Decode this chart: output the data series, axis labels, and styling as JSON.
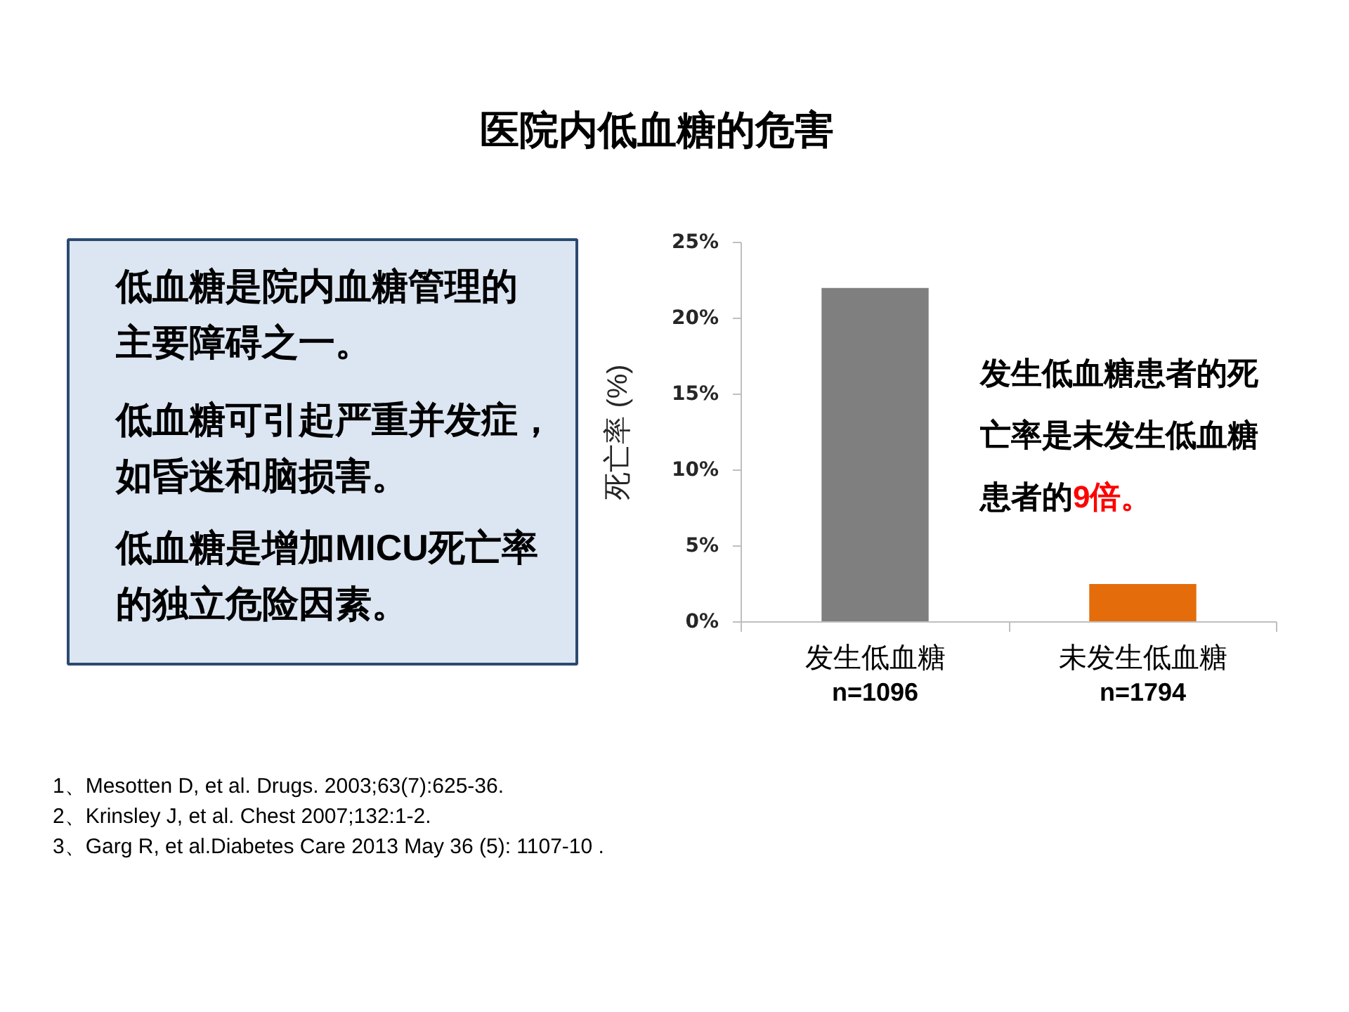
{
  "chart_data": {
    "type": "bar",
    "title": "医院内低血糖的危害",
    "ylabel": "死亡率 (%)",
    "categories": [
      "发生低血糖\nn=1096",
      "未发生低血糖\nn=1794"
    ],
    "values": [
      22,
      2.5
    ],
    "colors": [
      "#7f7f7f",
      "#e46c0a"
    ],
    "ylim": [
      0,
      25
    ],
    "yticks": [
      {
        "value": 0,
        "label": "0%"
      },
      {
        "value": 5,
        "label": "5%"
      },
      {
        "value": 10,
        "label": "10%"
      },
      {
        "value": 15,
        "label": "15%"
      },
      {
        "value": 20,
        "label": "20%"
      },
      {
        "value": 25,
        "label": "25%"
      }
    ],
    "annotations": [
      "低血糖是院内血糖管理的主要障碍之一。",
      "低血糖可引起严重并发症，如昏迷和脑损害。",
      "低血糖是增加MICU死亡率的独立危险因素。",
      "发生低血糖患者的死亡率是未发生低血糖",
      "患者的",
      "9倍。",
      "1、Mesotten D, et al. Drugs. 2003;63(7):625-36.",
      "2、Krinsley J, et al. Chest 2007;132:1-2.",
      "3、Garg R, et al.Diabetes Care 2013 May 36 (5): 1107-10 ."
    ]
  }
}
